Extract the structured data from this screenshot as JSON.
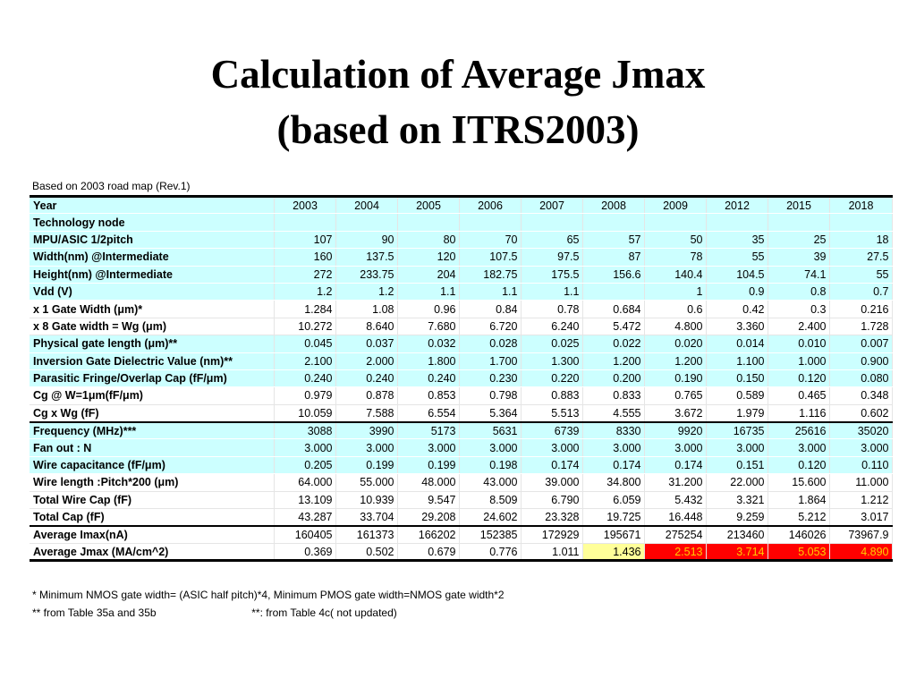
{
  "title": {
    "line1": "Calculation of Average Jmax",
    "line2": "(based on ITRS2003)"
  },
  "caption": "Based on 2003 road map (Rev.1)",
  "table": {
    "header": {
      "label": "Year",
      "years": [
        "2003",
        "2004",
        "2005",
        "2006",
        "2007",
        "2008",
        "2009",
        "2012",
        "2015",
        "2018"
      ]
    },
    "rows": [
      {
        "label": "Technology  node",
        "values": [
          "",
          "",
          "",
          "",
          "",
          "",
          "",
          "",
          "",
          ""
        ],
        "style": "cyan"
      },
      {
        "label": "MPU/ASIC 1/2pitch",
        "values": [
          "107",
          "90",
          "80",
          "70",
          "65",
          "57",
          "50",
          "35",
          "25",
          "18"
        ],
        "style": "cyan"
      },
      {
        "label": "Width(nm) @Intermediate",
        "values": [
          "160",
          "137.5",
          "120",
          "107.5",
          "97.5",
          "87",
          "78",
          "55",
          "39",
          "27.5"
        ],
        "style": "cyan"
      },
      {
        "label": "Height(nm) @Intermediate",
        "values": [
          "272",
          "233.75",
          "204",
          "182.75",
          "175.5",
          "156.6",
          "140.4",
          "104.5",
          "74.1",
          "55"
        ],
        "style": "cyan"
      },
      {
        "label": "Vdd (V)",
        "values": [
          "1.2",
          "1.2",
          "1.1",
          "1.1",
          "1.1",
          "",
          "1",
          "0.9",
          "0.8",
          "0.7"
        ],
        "style": "cyan"
      },
      {
        "label": "x 1 Gate Width (μm)*",
        "values": [
          "1.284",
          "1.08",
          "0.96",
          "0.84",
          "0.78",
          "0.684",
          "0.6",
          "0.42",
          "0.3",
          "0.216"
        ],
        "style": "white"
      },
      {
        "label": "x 8 Gate width = Wg (μm)",
        "values": [
          "10.272",
          "8.640",
          "7.680",
          "6.720",
          "6.240",
          "5.472",
          "4.800",
          "3.360",
          "2.400",
          "1.728"
        ],
        "style": "white"
      },
      {
        "label": "Physical gate length (μm)**",
        "values": [
          "0.045",
          "0.037",
          "0.032",
          "0.028",
          "0.025",
          "0.022",
          "0.020",
          "0.014",
          "0.010",
          "0.007"
        ],
        "style": "cyan"
      },
      {
        "label": "Inversion Gate Dielectric Value (nm)**",
        "values": [
          "2.100",
          "2.000",
          "1.800",
          "1.700",
          "1.300",
          "1.200",
          "1.200",
          "1.100",
          "1.000",
          "0.900"
        ],
        "style": "cyan"
      },
      {
        "label": "Parasitic Fringe/Overlap Cap (fF/μm)",
        "values": [
          "0.240",
          "0.240",
          "0.240",
          "0.230",
          "0.220",
          "0.200",
          "0.190",
          "0.150",
          "0.120",
          "0.080"
        ],
        "style": "cyan"
      },
      {
        "label": "Cg @ W=1μm(fF/μm)",
        "values": [
          "0.979",
          "0.878",
          "0.853",
          "0.798",
          "0.883",
          "0.833",
          "0.765",
          "0.589",
          "0.465",
          "0.348"
        ],
        "style": "white"
      },
      {
        "label": "Cg x Wg (fF)",
        "values": [
          "10.059",
          "7.588",
          "6.554",
          "5.364",
          "5.513",
          "4.555",
          "3.672",
          "1.979",
          "1.116",
          "0.602"
        ],
        "style": "white"
      },
      {
        "label": "Frequency (MHz)***",
        "values": [
          "3088",
          "3990",
          "5173",
          "5631",
          "6739",
          "8330",
          "9920",
          "16735",
          "25616",
          "35020"
        ],
        "style": "cyan",
        "rule": true
      },
      {
        "label": "Fan out : N",
        "values": [
          "3.000",
          "3.000",
          "3.000",
          "3.000",
          "3.000",
          "3.000",
          "3.000",
          "3.000",
          "3.000",
          "3.000"
        ],
        "style": "cyan"
      },
      {
        "label": "Wire capacitance (fF/μm)",
        "values": [
          "0.205",
          "0.199",
          "0.199",
          "0.198",
          "0.174",
          "0.174",
          "0.174",
          "0.151",
          "0.120",
          "0.110"
        ],
        "style": "cyan"
      },
      {
        "label": "Wire length :Pitch*200 (μm)",
        "values": [
          "64.000",
          "55.000",
          "48.000",
          "43.000",
          "39.000",
          "34.800",
          "31.200",
          "22.000",
          "15.600",
          "11.000"
        ],
        "style": "white"
      },
      {
        "label": "Total Wire Cap (fF)",
        "values": [
          "13.109",
          "10.939",
          "9.547",
          "8.509",
          "6.790",
          "6.059",
          "5.432",
          "3.321",
          "1.864",
          "1.212"
        ],
        "style": "white"
      },
      {
        "label": "Total Cap (fF)",
        "values": [
          "43.287",
          "33.704",
          "29.208",
          "24.602",
          "23.328",
          "19.725",
          "16.448",
          "9.259",
          "5.212",
          "3.017"
        ],
        "style": "white"
      },
      {
        "label": "Average Imax(nA)",
        "values": [
          "160405",
          "161373",
          "166202",
          "152385",
          "172929",
          "195671",
          "275254",
          "213460",
          "146026",
          "73967.9"
        ],
        "style": "white",
        "rule": true
      },
      {
        "label": "Average Jmax (MA/cm^2)",
        "values": [
          "0.369",
          "0.502",
          "0.679",
          "0.776",
          "1.011",
          "1.436",
          "2.513",
          "3.714",
          "5.053",
          "4.890"
        ],
        "style": "white",
        "last": true,
        "highlights": [
          "",
          "",
          "",
          "",
          "",
          "yellow",
          "red",
          "red",
          "red",
          "red"
        ]
      }
    ]
  },
  "footnotes": [
    "* Minimum NMOS gate width= (ASIC half pitch)*4, Minimum PMOS gate width=NMOS gate width*2",
    "** from Table 35a and 35b                                **: from Table 4c( not updated)"
  ],
  "colors": {
    "cyan_row": "#ccffff",
    "yellow_highlight": "#ffff99",
    "red_highlight": "#ff0000",
    "red_highlight_text": "#ffcc00"
  }
}
